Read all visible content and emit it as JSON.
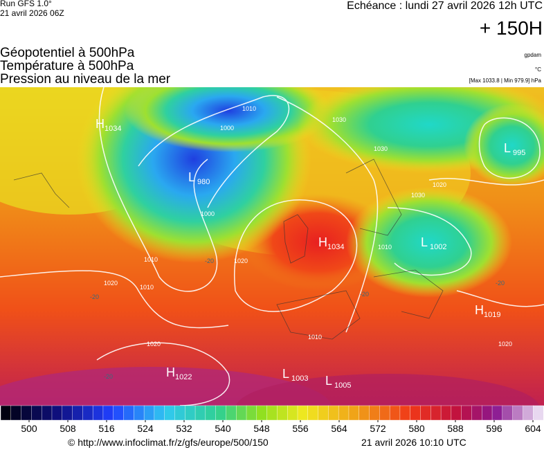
{
  "header": {
    "run": "Run GFS 1.0°",
    "run_date": "21 avril 2026 06Z",
    "valid": "Echéance : lundi 27 avril 2026 12h UTC",
    "lead": "+ 150H",
    "fields": [
      "Géopotentiel à 500hPa",
      "Température à 500hPa",
      "Pression au niveau de la mer"
    ],
    "units": [
      "gpdam",
      "°C",
      "[Max 1033.8 | Min 979.9] hPa"
    ]
  },
  "map": {
    "pressure_centers": [
      {
        "letter": "H",
        "value": 1034
      },
      {
        "letter": "L",
        "value": 980
      },
      {
        "letter": "H",
        "value": 1034
      },
      {
        "letter": "L",
        "value": 995
      },
      {
        "letter": "L",
        "value": 1002
      },
      {
        "letter": "H",
        "value": 1019
      },
      {
        "letter": "H",
        "value": 1022
      },
      {
        "letter": "L",
        "value": 1003
      },
      {
        "letter": "L",
        "value": 1005
      }
    ],
    "isobar_labels": [
      1010,
      1000,
      1000,
      1010,
      1010,
      1020,
      1020,
      1030,
      1030,
      1020,
      1030,
      1020,
      1010,
      1010,
      1020
    ],
    "temperature_labels": [
      -20,
      -20,
      -20,
      -20,
      -20
    ]
  },
  "colorbar": {
    "ticks": [
      500,
      508,
      516,
      524,
      532,
      540,
      548,
      556,
      564,
      572,
      580,
      588,
      596,
      604
    ]
  },
  "footer": {
    "url": "© http://www.infoclimat.fr/z/gfs/europe/500/150",
    "date": "21 avril 2026 10:10 UTC"
  }
}
